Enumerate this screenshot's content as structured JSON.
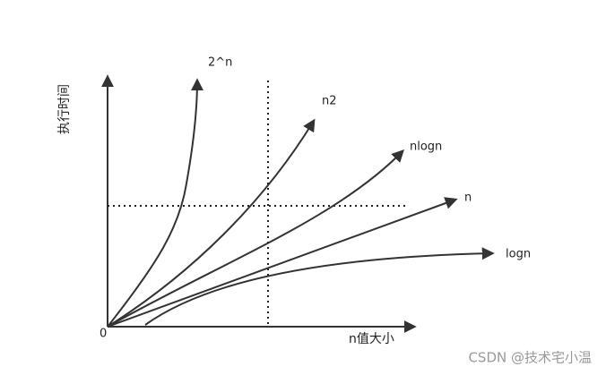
{
  "axes": {
    "y_label": "执行时间",
    "x_label": "n值大小",
    "origin": "0"
  },
  "curves": [
    {
      "label": "2^n"
    },
    {
      "label": "n2"
    },
    {
      "label": "nlogn"
    },
    {
      "label": "n"
    },
    {
      "label": "logn"
    }
  ],
  "watermark": "CSDN @技术宅小温"
}
